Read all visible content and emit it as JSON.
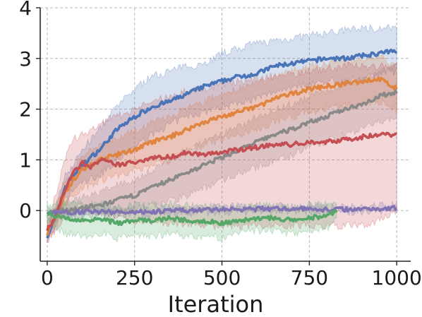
{
  "chart_data": {
    "type": "line",
    "xlabel": "Iteration",
    "ylabel": "",
    "xlim": [
      -20,
      1040
    ],
    "ylim": [
      -1.0,
      4.0
    ],
    "xticks": [
      0,
      250,
      500,
      750,
      1000
    ],
    "yticks": [
      0,
      1,
      2,
      3,
      4
    ],
    "grid": true,
    "legend": "none",
    "series": [
      {
        "color": "#4a74b8",
        "x": [
          0,
          25,
          50,
          75,
          100,
          150,
          200,
          250,
          300,
          350,
          400,
          450,
          500,
          550,
          600,
          650,
          700,
          750,
          800,
          850,
          900,
          950,
          1000
        ],
        "mean": [
          -0.5,
          -0.15,
          0.45,
          0.7,
          0.9,
          1.2,
          1.6,
          1.85,
          2.05,
          2.15,
          2.3,
          2.45,
          2.55,
          2.65,
          2.7,
          2.85,
          2.9,
          2.95,
          3.0,
          3.0,
          3.05,
          3.1,
          3.15
        ],
        "lower": [
          -0.6,
          -0.3,
          0.2,
          0.4,
          0.55,
          0.7,
          1.0,
          1.25,
          1.5,
          1.7,
          1.85,
          1.95,
          2.05,
          2.15,
          2.2,
          2.35,
          2.45,
          2.5,
          2.55,
          2.55,
          2.6,
          2.7,
          2.75
        ],
        "upper": [
          -0.35,
          0.05,
          0.7,
          0.9,
          1.2,
          1.6,
          2.05,
          2.4,
          2.65,
          2.75,
          2.85,
          2.9,
          3.1,
          3.2,
          3.3,
          3.35,
          3.4,
          3.45,
          3.5,
          3.55,
          3.6,
          3.6,
          3.6
        ]
      },
      {
        "color": "#e08540",
        "x": [
          0,
          25,
          50,
          75,
          100,
          150,
          200,
          250,
          300,
          350,
          400,
          450,
          500,
          550,
          600,
          650,
          700,
          750,
          800,
          850,
          900,
          950,
          1000
        ],
        "mean": [
          -0.45,
          -0.1,
          0.35,
          0.6,
          0.8,
          1.0,
          1.1,
          1.2,
          1.35,
          1.45,
          1.6,
          1.75,
          1.85,
          1.95,
          2.05,
          2.2,
          2.3,
          2.4,
          2.45,
          2.5,
          2.55,
          2.6,
          2.4
        ],
        "lower": [
          -0.55,
          -0.3,
          0.1,
          0.3,
          0.45,
          0.6,
          0.7,
          0.8,
          0.9,
          1.0,
          1.15,
          1.3,
          1.4,
          1.5,
          1.6,
          1.75,
          1.85,
          1.95,
          2.0,
          2.05,
          2.1,
          2.15,
          2.0
        ],
        "upper": [
          -0.3,
          0.1,
          0.6,
          0.85,
          1.05,
          1.3,
          1.45,
          1.55,
          1.75,
          1.85,
          2.0,
          2.15,
          2.3,
          2.4,
          2.5,
          2.65,
          2.75,
          2.85,
          2.9,
          2.95,
          3.0,
          3.05,
          2.8
        ]
      },
      {
        "color": "#898989",
        "x": [
          0,
          50,
          100,
          150,
          200,
          250,
          300,
          350,
          400,
          450,
          500,
          550,
          600,
          650,
          700,
          750,
          800,
          850,
          900,
          950,
          1000
        ],
        "mean": [
          -0.05,
          0.0,
          0.05,
          0.1,
          0.2,
          0.3,
          0.45,
          0.6,
          0.75,
          0.9,
          1.05,
          1.2,
          1.35,
          1.5,
          1.6,
          1.75,
          1.85,
          2.0,
          2.1,
          2.25,
          2.35
        ],
        "lower": [
          -0.15,
          -0.15,
          -0.15,
          -0.1,
          -0.05,
          0.0,
          0.1,
          0.2,
          0.3,
          0.45,
          0.6,
          0.75,
          0.85,
          1.0,
          1.1,
          1.25,
          1.35,
          1.5,
          1.6,
          1.75,
          1.85
        ],
        "upper": [
          0.05,
          0.15,
          0.25,
          0.35,
          0.5,
          0.6,
          0.8,
          1.0,
          1.2,
          1.35,
          1.5,
          1.65,
          1.85,
          2.0,
          2.1,
          2.25,
          2.35,
          2.5,
          2.6,
          2.75,
          2.85
        ]
      },
      {
        "color": "#c44e52",
        "x": [
          0,
          25,
          50,
          75,
          100,
          125,
          150,
          175,
          200,
          250,
          300,
          350,
          400,
          450,
          500,
          550,
          600,
          650,
          700,
          750,
          800,
          850,
          900,
          950,
          1000
        ],
        "mean": [
          -0.4,
          -0.1,
          0.4,
          0.75,
          0.95,
          0.85,
          1.0,
          0.95,
          0.9,
          0.95,
          1.05,
          1.05,
          1.15,
          1.1,
          1.15,
          1.2,
          1.25,
          1.3,
          1.3,
          1.35,
          1.35,
          1.4,
          1.45,
          1.5,
          1.5
        ],
        "lower": [
          -0.6,
          -0.4,
          -0.1,
          0.0,
          0.1,
          0.0,
          -0.05,
          -0.1,
          -0.15,
          -0.2,
          -0.2,
          -0.25,
          -0.25,
          -0.3,
          -0.3,
          -0.3,
          -0.3,
          -0.3,
          -0.3,
          -0.3,
          -0.3,
          -0.3,
          -0.3,
          -0.2,
          0.0
        ],
        "upper": [
          -0.2,
          0.3,
          1.0,
          1.4,
          1.5,
          1.55,
          1.7,
          1.8,
          1.85,
          2.0,
          2.15,
          2.25,
          2.35,
          2.4,
          2.5,
          2.55,
          2.6,
          2.65,
          2.7,
          2.75,
          2.8,
          2.85,
          2.85,
          2.85,
          2.85
        ]
      },
      {
        "color": "#8172b3",
        "x": [
          0,
          100,
          200,
          300,
          400,
          500,
          600,
          700,
          800,
          900,
          1000
        ],
        "mean": [
          -0.05,
          -0.02,
          -0.03,
          -0.02,
          0.0,
          0.02,
          0.03,
          0.04,
          0.02,
          0.03,
          0.05
        ],
        "lower": [
          -0.1,
          -0.07,
          -0.08,
          -0.07,
          -0.05,
          -0.03,
          -0.02,
          -0.01,
          -0.03,
          -0.02,
          0.0
        ],
        "upper": [
          0.0,
          0.03,
          0.02,
          0.03,
          0.05,
          0.07,
          0.08,
          0.09,
          0.07,
          0.08,
          0.1
        ]
      },
      {
        "color": "#55a868",
        "x": [
          0,
          50,
          100,
          150,
          200,
          250,
          300,
          350,
          400,
          450,
          500,
          550,
          600,
          650,
          700,
          750,
          800,
          830
        ],
        "mean": [
          -0.05,
          -0.15,
          -0.2,
          -0.15,
          -0.25,
          -0.2,
          -0.2,
          -0.15,
          -0.2,
          -0.2,
          -0.25,
          -0.2,
          -0.15,
          -0.15,
          -0.2,
          -0.15,
          -0.1,
          0.0
        ],
        "lower": [
          -0.2,
          -0.45,
          -0.5,
          -0.45,
          -0.55,
          -0.5,
          -0.5,
          -0.45,
          -0.5,
          -0.5,
          -0.55,
          -0.45,
          -0.4,
          -0.4,
          -0.45,
          -0.4,
          -0.35,
          -0.15
        ],
        "upper": [
          0.1,
          0.15,
          0.1,
          0.15,
          0.05,
          0.1,
          0.1,
          0.15,
          0.1,
          0.1,
          0.05,
          0.05,
          0.1,
          0.1,
          0.05,
          0.1,
          0.15,
          0.1
        ]
      }
    ]
  }
}
